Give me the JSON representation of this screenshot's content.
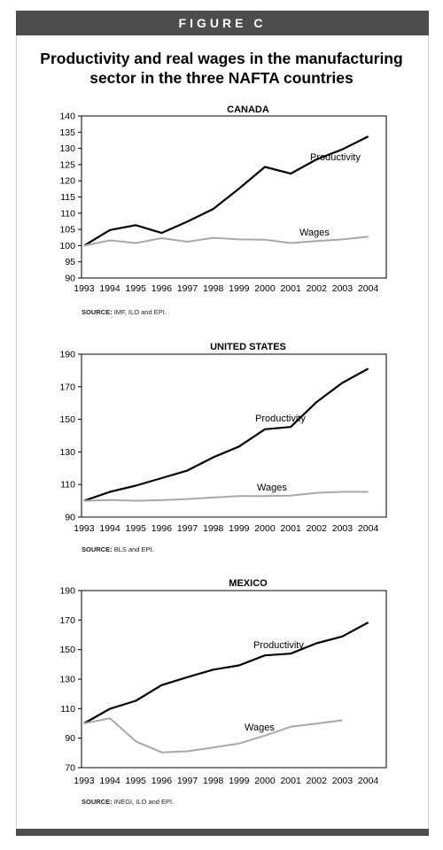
{
  "header": {
    "figure_label": "FIGURE C"
  },
  "title": "Productivity and real wages in the manufacturing sector in the three NAFTA countries",
  "chart_data": [
    {
      "type": "line",
      "title": "CANADA",
      "source_label": "SOURCE:",
      "source_text": "IMF, ILO and EPI.",
      "categories": [
        "1993",
        "1994",
        "1995",
        "1996",
        "1997",
        "1998",
        "1999",
        "2000",
        "2001",
        "2002",
        "2003",
        "2004"
      ],
      "ylim": [
        90,
        140
      ],
      "yticks": [
        90,
        95,
        100,
        105,
        110,
        115,
        120,
        125,
        130,
        135,
        140
      ],
      "series": [
        {
          "name": "Productivity",
          "color": "#000000",
          "values": [
            100,
            104.8,
            106.3,
            103.9,
            107.4,
            111.3,
            117.6,
            124.3,
            122.2,
            126.6,
            129.7,
            133.7
          ]
        },
        {
          "name": "Wages",
          "color": "#a8a8a8",
          "values": [
            100,
            101.6,
            100.8,
            102.3,
            101.2,
            102.4,
            101.9,
            101.8,
            100.8,
            101.4,
            101.9,
            102.8
          ]
        }
      ]
    },
    {
      "type": "line",
      "title": "UNITED STATES",
      "source_label": "SOURCE:",
      "source_text": "BLS and EPI.",
      "categories": [
        "1993",
        "1994",
        "1995",
        "1996",
        "1997",
        "1998",
        "1999",
        "2000",
        "2001",
        "2002",
        "2003",
        "2004"
      ],
      "ylim": [
        90,
        190
      ],
      "yticks": [
        90,
        110,
        130,
        150,
        170,
        190
      ],
      "series": [
        {
          "name": "Productivity",
          "color": "#000000",
          "values": [
            100,
            105.5,
            109.3,
            113.9,
            118.6,
            126.7,
            133.3,
            143.9,
            145.3,
            160.6,
            172.4,
            181.1
          ]
        },
        {
          "name": "Wages",
          "color": "#a8a8a8",
          "values": [
            100,
            100.5,
            100.0,
            100.4,
            101.1,
            102.0,
            102.9,
            102.9,
            103.2,
            104.9,
            105.5,
            105.5
          ]
        }
      ]
    },
    {
      "type": "line",
      "title": "MEXICO",
      "source_label": "SOURCE:",
      "source_text": "INEGI, ILO and EPI.",
      "categories": [
        "1993",
        "1994",
        "1995",
        "1996",
        "1997",
        "1998",
        "1999",
        "2000",
        "2001",
        "2002",
        "2003",
        "2004"
      ],
      "ylim": [
        70,
        190
      ],
      "yticks": [
        70,
        90,
        110,
        130,
        150,
        170,
        190
      ],
      "series": [
        {
          "name": "Productivity",
          "color": "#000000",
          "values": [
            100,
            109.9,
            115.3,
            125.9,
            131.3,
            136.4,
            139.3,
            146.1,
            147.3,
            154.3,
            158.9,
            168.4
          ]
        },
        {
          "name": "Wages",
          "color": "#a8a8a8",
          "values": [
            100,
            103.4,
            87.8,
            80.4,
            81.1,
            83.7,
            86.4,
            91.7,
            97.7,
            99.9,
            102.1,
            null
          ]
        }
      ]
    }
  ]
}
